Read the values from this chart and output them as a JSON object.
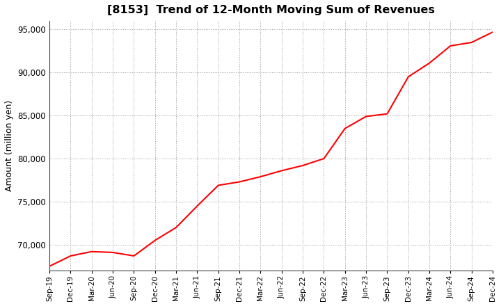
{
  "title": "[8153]  Trend of 12-Month Moving Sum of Revenues",
  "ylabel": "Amount (million yen)",
  "line_color": "#ff0000",
  "background_color": "#ffffff",
  "grid_color": "#999999",
  "ylim": [
    67000,
    96000
  ],
  "yticks": [
    70000,
    75000,
    80000,
    85000,
    90000,
    95000
  ],
  "x_labels": [
    "Sep-19",
    "Dec-19",
    "Mar-20",
    "Jun-20",
    "Sep-20",
    "Dec-20",
    "Mar-21",
    "Jun-21",
    "Sep-21",
    "Dec-21",
    "Mar-22",
    "Jun-22",
    "Sep-22",
    "Dec-22",
    "Mar-23",
    "Jun-23",
    "Sep-23",
    "Dec-23",
    "Mar-24",
    "Jun-24",
    "Sep-24",
    "Dec-24"
  ],
  "values": [
    67500,
    68700,
    69200,
    69100,
    68700,
    70500,
    72000,
    74500,
    76900,
    77300,
    77900,
    78600,
    79200,
    80000,
    83500,
    84900,
    85200,
    89500,
    91100,
    93100,
    93500,
    94700
  ]
}
